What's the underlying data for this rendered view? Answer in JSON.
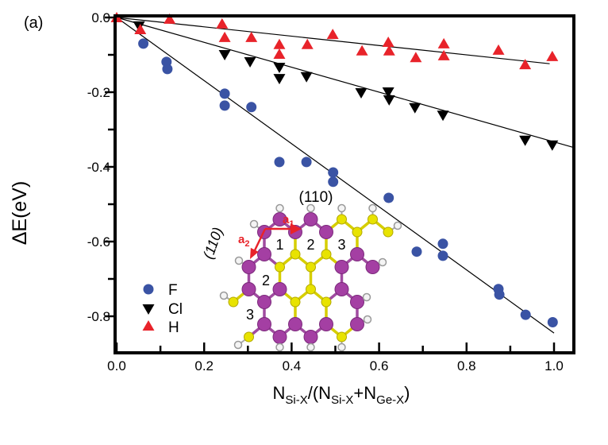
{
  "panel_label": "(a)",
  "colors": {
    "f_series": "#3a53a4",
    "cl_series": "#000000",
    "h_series": "#e8232a",
    "fit_line": "#000000",
    "frame": "#000000",
    "background": "#ffffff"
  },
  "chart_data": {
    "type": "scatter",
    "title": "",
    "xlabel": "N_Si-X/(N_Si-X+N_Ge-X)",
    "ylabel": "ΔE(eV)",
    "xlim": [
      0,
      1.05
    ],
    "ylim": [
      -0.9,
      0
    ],
    "grid": false,
    "x_major_ticks": [
      0.0,
      0.2,
      0.4,
      0.6,
      0.8,
      1.0
    ],
    "x_major_labels": [
      "0.0",
      "0.2",
      "0.4",
      "0.6",
      "0.8",
      "1.0"
    ],
    "x_minor_ticks": [
      0.1,
      0.3,
      0.5,
      0.7,
      0.9
    ],
    "y_major_ticks": [
      0,
      -0.2,
      -0.4,
      -0.6,
      -0.8
    ],
    "y_major_labels": [
      "0.0",
      "-0.2",
      "-0.4",
      "-0.6",
      "-0.8"
    ],
    "y_minor_ticks": [
      -0.1,
      -0.3,
      -0.5,
      -0.7
    ],
    "xlabel_parts": [
      {
        "t": "N",
        "s": false
      },
      {
        "t": "Si-X",
        "s": true
      },
      {
        "t": "/(N",
        "s": false
      },
      {
        "t": "Si-X",
        "s": true
      },
      {
        "t": "+N",
        "s": false
      },
      {
        "t": "Ge-X",
        "s": true
      },
      {
        "t": ")",
        "s": false
      }
    ],
    "series": [
      {
        "name": "F",
        "marker": "circle",
        "color": "#3a53a4",
        "fit_slope": -0.845,
        "fit_x_range": [
          0,
          1.0
        ],
        "points": [
          [
            0.061,
            -0.07
          ],
          [
            0.114,
            -0.119
          ],
          [
            0.116,
            -0.138
          ],
          [
            0.247,
            -0.204
          ],
          [
            0.247,
            -0.236
          ],
          [
            0.308,
            -0.24
          ],
          [
            0.372,
            -0.387
          ],
          [
            0.434,
            -0.387
          ],
          [
            0.495,
            -0.415
          ],
          [
            0.495,
            -0.44
          ],
          [
            0.622,
            -0.483
          ],
          [
            0.686,
            -0.627
          ],
          [
            0.746,
            -0.606
          ],
          [
            0.746,
            -0.638
          ],
          [
            0.873,
            -0.727
          ],
          [
            0.875,
            -0.742
          ],
          [
            0.935,
            -0.796
          ],
          [
            0.997,
            -0.816
          ]
        ]
      },
      {
        "name": "Cl",
        "marker": "triangle-down",
        "color": "#000000",
        "fit_slope": -0.333,
        "fit_x_range": [
          0,
          1.047
        ],
        "points": [
          [
            0.051,
            -0.021
          ],
          [
            0.247,
            -0.098
          ],
          [
            0.305,
            -0.117
          ],
          [
            0.372,
            -0.132
          ],
          [
            0.372,
            -0.162
          ],
          [
            0.434,
            -0.157
          ],
          [
            0.559,
            -0.2
          ],
          [
            0.621,
            -0.198
          ],
          [
            0.623,
            -0.219
          ],
          [
            0.682,
            -0.24
          ],
          [
            0.746,
            -0.26
          ],
          [
            0.934,
            -0.327
          ],
          [
            0.996,
            -0.34
          ]
        ]
      },
      {
        "name": "H",
        "marker": "triangle-up",
        "color": "#e8232a",
        "fit_slope": -0.125,
        "fit_x_range": [
          0,
          0.99
        ],
        "points": [
          [
            0.0,
            -0.002
          ],
          [
            0.054,
            -0.034
          ],
          [
            0.121,
            -0.006
          ],
          [
            0.241,
            -0.019
          ],
          [
            0.247,
            -0.055
          ],
          [
            0.308,
            -0.055
          ],
          [
            0.372,
            -0.074
          ],
          [
            0.372,
            -0.1
          ],
          [
            0.436,
            -0.074
          ],
          [
            0.494,
            -0.047
          ],
          [
            0.561,
            -0.091
          ],
          [
            0.621,
            -0.068
          ],
          [
            0.623,
            -0.091
          ],
          [
            0.684,
            -0.109
          ],
          [
            0.748,
            -0.072
          ],
          [
            0.748,
            -0.104
          ],
          [
            0.873,
            -0.089
          ],
          [
            0.934,
            -0.128
          ],
          [
            0.996,
            -0.106
          ]
        ]
      }
    ],
    "legend": {
      "position": "lower-left",
      "items": [
        {
          "label": "F"
        },
        {
          "label": "Cl"
        },
        {
          "label": "H"
        }
      ]
    }
  },
  "inset": {
    "description": "ball-and-stick (110) surface model",
    "plane_label_top": "(110)",
    "plane_label_left": "(110)",
    "vector_labels": [
      {
        "main": "a",
        "sub": "1"
      },
      {
        "main": "a",
        "sub": "2"
      }
    ],
    "site_labels": [
      "1",
      "2",
      "3",
      "2",
      "3"
    ],
    "atom_colors": {
      "ge": "#a43fa3",
      "si": "#e8e300",
      "h": "#f4f4f4"
    }
  }
}
